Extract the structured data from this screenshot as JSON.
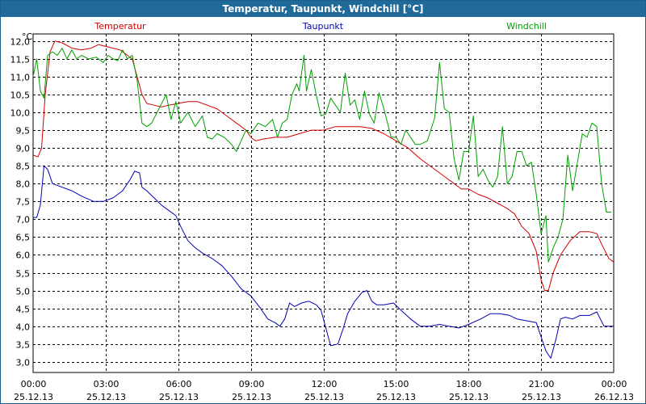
{
  "chart_data": {
    "type": "line",
    "title": "Temperatur, Taupunkt, Windchill [°C]",
    "ylabel": "°C",
    "ylim": [
      2.7,
      12.2
    ],
    "xlim": [
      0,
      24
    ],
    "grid": true,
    "y_ticks": [
      "3,0",
      "3,5",
      "4,0",
      "4,5",
      "5,0",
      "5,5",
      "6,0",
      "6,5",
      "7,0",
      "7,5",
      "8,0",
      "8,5",
      "9,0",
      "9,5",
      "10,0",
      "10,5",
      "11,0",
      "11,5",
      "12,0"
    ],
    "y_tick_values": [
      3.0,
      3.5,
      4.0,
      4.5,
      5.0,
      5.5,
      6.0,
      6.5,
      7.0,
      7.5,
      8.0,
      8.5,
      9.0,
      9.5,
      10.0,
      10.5,
      11.0,
      11.5,
      12.0
    ],
    "x_ticks": [
      {
        "time": "00:00",
        "date": "25.12.13"
      },
      {
        "time": "03:00",
        "date": "25.12.13"
      },
      {
        "time": "06:00",
        "date": "25.12.13"
      },
      {
        "time": "09:00",
        "date": "25.12.13"
      },
      {
        "time": "12:00",
        "date": "25.12.13"
      },
      {
        "time": "15:00",
        "date": "25.12.13"
      },
      {
        "time": "18:00",
        "date": "25.12.13"
      },
      {
        "time": "21:00",
        "date": "25.12.13"
      },
      {
        "time": "00:00",
        "date": "26.12.13"
      }
    ],
    "series": [
      {
        "name": "Temperatur",
        "color": "#d40000",
        "legend_position": "top-left",
        "points": [
          [
            0,
            8.8
          ],
          [
            0.2,
            8.75
          ],
          [
            0.35,
            9.0
          ],
          [
            0.5,
            10.5
          ],
          [
            0.7,
            11.7
          ],
          [
            0.9,
            12.0
          ],
          [
            1.2,
            11.95
          ],
          [
            1.6,
            11.8
          ],
          [
            2.0,
            11.75
          ],
          [
            2.4,
            11.8
          ],
          [
            2.7,
            11.9
          ],
          [
            3.0,
            11.85
          ],
          [
            3.3,
            11.8
          ],
          [
            3.6,
            11.75
          ],
          [
            3.9,
            11.6
          ],
          [
            4.1,
            11.5
          ],
          [
            4.3,
            11.0
          ],
          [
            4.5,
            10.5
          ],
          [
            4.7,
            10.25
          ],
          [
            5.0,
            10.2
          ],
          [
            5.3,
            10.15
          ],
          [
            5.6,
            10.2
          ],
          [
            6.0,
            10.25
          ],
          [
            6.4,
            10.3
          ],
          [
            6.8,
            10.3
          ],
          [
            7.2,
            10.2
          ],
          [
            7.6,
            10.1
          ],
          [
            8.0,
            9.9
          ],
          [
            8.4,
            9.7
          ],
          [
            8.8,
            9.5
          ],
          [
            9.0,
            9.3
          ],
          [
            9.2,
            9.2
          ],
          [
            9.5,
            9.25
          ],
          [
            10.0,
            9.3
          ],
          [
            10.5,
            9.3
          ],
          [
            11.0,
            9.4
          ],
          [
            11.5,
            9.5
          ],
          [
            12.0,
            9.5
          ],
          [
            12.5,
            9.6
          ],
          [
            13.0,
            9.6
          ],
          [
            13.5,
            9.6
          ],
          [
            14.0,
            9.55
          ],
          [
            14.5,
            9.4
          ],
          [
            15.0,
            9.2
          ],
          [
            15.5,
            9.0
          ],
          [
            16.0,
            8.7
          ],
          [
            16.5,
            8.45
          ],
          [
            17.0,
            8.2
          ],
          [
            17.4,
            8.0
          ],
          [
            17.7,
            7.85
          ],
          [
            18.0,
            7.85
          ],
          [
            18.4,
            7.7
          ],
          [
            18.8,
            7.6
          ],
          [
            19.2,
            7.45
          ],
          [
            19.6,
            7.3
          ],
          [
            19.9,
            7.15
          ],
          [
            20.2,
            6.8
          ],
          [
            20.5,
            6.6
          ],
          [
            20.8,
            6.1
          ],
          [
            21.0,
            5.3
          ],
          [
            21.15,
            5.0
          ],
          [
            21.3,
            5.0
          ],
          [
            21.5,
            5.5
          ],
          [
            21.8,
            6.0
          ],
          [
            22.2,
            6.4
          ],
          [
            22.6,
            6.65
          ],
          [
            23.0,
            6.65
          ],
          [
            23.3,
            6.6
          ],
          [
            23.5,
            6.3
          ],
          [
            23.8,
            5.9
          ],
          [
            24.0,
            5.8
          ]
        ]
      },
      {
        "name": "Taupunkt",
        "color": "#0000b4",
        "legend_position": "top-center",
        "points": [
          [
            0,
            7.05
          ],
          [
            0.15,
            7.05
          ],
          [
            0.3,
            7.4
          ],
          [
            0.45,
            8.5
          ],
          [
            0.6,
            8.4
          ],
          [
            0.8,
            8.0
          ],
          [
            1.2,
            7.9
          ],
          [
            1.6,
            7.8
          ],
          [
            2.0,
            7.65
          ],
          [
            2.5,
            7.5
          ],
          [
            2.9,
            7.5
          ],
          [
            3.3,
            7.6
          ],
          [
            3.7,
            7.8
          ],
          [
            4.0,
            8.1
          ],
          [
            4.2,
            8.35
          ],
          [
            4.4,
            8.3
          ],
          [
            4.5,
            7.9
          ],
          [
            4.7,
            7.8
          ],
          [
            5.0,
            7.6
          ],
          [
            5.3,
            7.4
          ],
          [
            5.6,
            7.25
          ],
          [
            5.9,
            7.1
          ],
          [
            6.1,
            6.8
          ],
          [
            6.4,
            6.4
          ],
          [
            6.7,
            6.2
          ],
          [
            7.0,
            6.05
          ],
          [
            7.4,
            5.9
          ],
          [
            7.8,
            5.7
          ],
          [
            8.2,
            5.4
          ],
          [
            8.6,
            5.05
          ],
          [
            9.0,
            4.85
          ],
          [
            9.4,
            4.5
          ],
          [
            9.7,
            4.2
          ],
          [
            10.0,
            4.1
          ],
          [
            10.2,
            4.0
          ],
          [
            10.4,
            4.2
          ],
          [
            10.6,
            4.65
          ],
          [
            10.8,
            4.55
          ],
          [
            11.1,
            4.65
          ],
          [
            11.4,
            4.7
          ],
          [
            11.7,
            4.6
          ],
          [
            11.9,
            4.45
          ],
          [
            12.1,
            3.95
          ],
          [
            12.3,
            3.45
          ],
          [
            12.6,
            3.5
          ],
          [
            12.8,
            3.9
          ],
          [
            13.0,
            4.35
          ],
          [
            13.3,
            4.7
          ],
          [
            13.6,
            4.95
          ],
          [
            13.8,
            5.0
          ],
          [
            14.0,
            4.7
          ],
          [
            14.2,
            4.6
          ],
          [
            14.5,
            4.6
          ],
          [
            14.9,
            4.65
          ],
          [
            15.2,
            4.45
          ],
          [
            15.6,
            4.2
          ],
          [
            16.0,
            4.0
          ],
          [
            16.4,
            4.0
          ],
          [
            16.8,
            4.05
          ],
          [
            17.2,
            4.0
          ],
          [
            17.6,
            3.95
          ],
          [
            18.0,
            4.05
          ],
          [
            18.5,
            4.2
          ],
          [
            18.9,
            4.35
          ],
          [
            19.3,
            4.35
          ],
          [
            19.7,
            4.3
          ],
          [
            20.0,
            4.2
          ],
          [
            20.4,
            4.15
          ],
          [
            20.8,
            4.1
          ],
          [
            21.0,
            3.7
          ],
          [
            21.2,
            3.3
          ],
          [
            21.4,
            3.1
          ],
          [
            21.6,
            3.6
          ],
          [
            21.8,
            4.2
          ],
          [
            22.0,
            4.25
          ],
          [
            22.3,
            4.2
          ],
          [
            22.6,
            4.3
          ],
          [
            23.0,
            4.3
          ],
          [
            23.3,
            4.4
          ],
          [
            23.6,
            4.0
          ],
          [
            24.0,
            4.0
          ]
        ]
      },
      {
        "name": "Windchill",
        "color": "#00a000",
        "legend_position": "top-right",
        "points": [
          [
            0,
            11.0
          ],
          [
            0.15,
            11.5
          ],
          [
            0.3,
            10.6
          ],
          [
            0.45,
            10.4
          ],
          [
            0.6,
            11.6
          ],
          [
            0.8,
            11.7
          ],
          [
            1.0,
            11.6
          ],
          [
            1.2,
            11.8
          ],
          [
            1.4,
            11.5
          ],
          [
            1.6,
            11.75
          ],
          [
            1.8,
            11.5
          ],
          [
            2.0,
            11.6
          ],
          [
            2.3,
            11.5
          ],
          [
            2.6,
            11.55
          ],
          [
            2.9,
            11.4
          ],
          [
            3.1,
            11.6
          ],
          [
            3.3,
            11.5
          ],
          [
            3.5,
            11.45
          ],
          [
            3.7,
            11.75
          ],
          [
            3.9,
            11.5
          ],
          [
            4.1,
            11.6
          ],
          [
            4.3,
            10.9
          ],
          [
            4.5,
            9.7
          ],
          [
            4.7,
            9.6
          ],
          [
            4.9,
            9.7
          ],
          [
            5.2,
            10.1
          ],
          [
            5.5,
            10.5
          ],
          [
            5.7,
            9.8
          ],
          [
            5.9,
            10.3
          ],
          [
            6.1,
            9.7
          ],
          [
            6.4,
            10.0
          ],
          [
            6.7,
            9.6
          ],
          [
            7.0,
            9.9
          ],
          [
            7.2,
            9.3
          ],
          [
            7.4,
            9.25
          ],
          [
            7.6,
            9.4
          ],
          [
            7.9,
            9.3
          ],
          [
            8.2,
            9.1
          ],
          [
            8.4,
            8.9
          ],
          [
            8.6,
            9.2
          ],
          [
            8.8,
            9.5
          ],
          [
            9.0,
            9.4
          ],
          [
            9.3,
            9.7
          ],
          [
            9.6,
            9.6
          ],
          [
            9.9,
            9.8
          ],
          [
            10.1,
            9.3
          ],
          [
            10.3,
            9.7
          ],
          [
            10.5,
            9.8
          ],
          [
            10.7,
            10.5
          ],
          [
            10.9,
            10.8
          ],
          [
            11.0,
            10.6
          ],
          [
            11.2,
            11.6
          ],
          [
            11.3,
            10.6
          ],
          [
            11.5,
            11.2
          ],
          [
            11.7,
            10.5
          ],
          [
            11.9,
            9.9
          ],
          [
            12.1,
            9.95
          ],
          [
            12.3,
            10.4
          ],
          [
            12.5,
            10.2
          ],
          [
            12.7,
            10.0
          ],
          [
            12.9,
            11.1
          ],
          [
            13.1,
            10.2
          ],
          [
            13.3,
            10.35
          ],
          [
            13.5,
            9.8
          ],
          [
            13.7,
            10.6
          ],
          [
            13.9,
            9.95
          ],
          [
            14.1,
            9.7
          ],
          [
            14.3,
            10.55
          ],
          [
            14.5,
            10.1
          ],
          [
            14.8,
            9.3
          ],
          [
            15.0,
            9.3
          ],
          [
            15.2,
            9.1
          ],
          [
            15.4,
            9.5
          ],
          [
            15.6,
            9.3
          ],
          [
            15.8,
            9.1
          ],
          [
            16.0,
            9.1
          ],
          [
            16.3,
            9.2
          ],
          [
            16.6,
            9.85
          ],
          [
            16.8,
            11.4
          ],
          [
            17.0,
            10.1
          ],
          [
            17.2,
            10.0
          ],
          [
            17.4,
            8.7
          ],
          [
            17.6,
            8.1
          ],
          [
            17.8,
            8.9
          ],
          [
            18.0,
            8.9
          ],
          [
            18.2,
            9.9
          ],
          [
            18.4,
            8.2
          ],
          [
            18.6,
            8.4
          ],
          [
            18.8,
            8.1
          ],
          [
            19.0,
            7.9
          ],
          [
            19.2,
            8.2
          ],
          [
            19.4,
            9.6
          ],
          [
            19.6,
            8.0
          ],
          [
            19.8,
            8.2
          ],
          [
            20.0,
            8.9
          ],
          [
            20.2,
            8.9
          ],
          [
            20.4,
            8.5
          ],
          [
            20.6,
            8.6
          ],
          [
            20.8,
            7.7
          ],
          [
            21.0,
            6.6
          ],
          [
            21.2,
            7.1
          ],
          [
            21.3,
            5.8
          ],
          [
            21.5,
            6.2
          ],
          [
            21.7,
            6.5
          ],
          [
            21.9,
            7.0
          ],
          [
            22.1,
            8.8
          ],
          [
            22.3,
            7.8
          ],
          [
            22.5,
            8.6
          ],
          [
            22.7,
            9.4
          ],
          [
            22.9,
            9.3
          ],
          [
            23.1,
            9.7
          ],
          [
            23.3,
            9.6
          ],
          [
            23.5,
            8.0
          ],
          [
            23.7,
            7.2
          ],
          [
            23.9,
            7.2
          ]
        ]
      }
    ]
  }
}
